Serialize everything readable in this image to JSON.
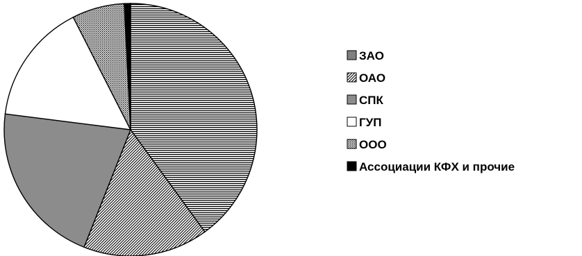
{
  "chart_data": {
    "type": "pie",
    "start": "top",
    "direction": "clockwise",
    "slices": [
      {
        "label": "ЗАО",
        "value": 40.0,
        "fill": "hstripes"
      },
      {
        "label": "ОАО",
        "value": 16.0,
        "fill": "diag"
      },
      {
        "label": "СПК",
        "value": 21.0,
        "fill": "#8c8c8c"
      },
      {
        "label": "ГУП",
        "value": 15.5,
        "fill": "#ffffff"
      },
      {
        "label": "ООО",
        "value": 6.7,
        "fill": "dots"
      },
      {
        "label": "Ассоциации КФХ и прочие",
        "value": 0.8,
        "fill": "#000000"
      }
    ],
    "legend": {
      "placement": "right",
      "items": [
        {
          "label": "ЗАО",
          "swatch": "checker"
        },
        {
          "label": "ОАО",
          "swatch": "diag"
        },
        {
          "label": "СПК",
          "swatch": "#8c8c8c"
        },
        {
          "label": "ГУП",
          "swatch": "#ffffff"
        },
        {
          "label": "ООО",
          "swatch": "dots"
        },
        {
          "label": "Ассоциации КФХ и прочие",
          "swatch": "#000000"
        }
      ]
    },
    "colors": {
      "outline": "#000000",
      "background": "#ffffff"
    }
  }
}
